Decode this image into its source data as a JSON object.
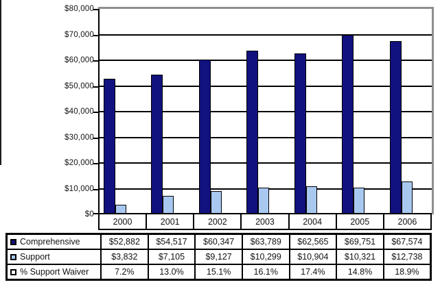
{
  "chart_data": {
    "type": "bar",
    "title": "",
    "xlabel": "",
    "ylabel": "",
    "categories": [
      "2000",
      "2001",
      "2002",
      "2003",
      "2004",
      "2005",
      "2006"
    ],
    "series": [
      {
        "name": "Comprehensive",
        "color": "#11117f",
        "plotted": true,
        "values": [
          52882,
          54517,
          60347,
          63789,
          62565,
          69751,
          67574
        ],
        "labels": [
          "$52,882",
          "$54,517",
          "$60,347",
          "$63,789",
          "$62,565",
          "$69,751",
          "$67,574"
        ]
      },
      {
        "name": "Support",
        "color": "#a8c8f0",
        "plotted": true,
        "values": [
          3832,
          7105,
          9127,
          10299,
          10904,
          10321,
          12738
        ],
        "labels": [
          "$3,832",
          "$7,105",
          "$9,127",
          "$10,299",
          "$10,904",
          "$10,321",
          "$12,738"
        ]
      },
      {
        "name": "% Support Waiver",
        "color": "#ffffff",
        "plotted": false,
        "values": [
          7.2,
          13.0,
          15.1,
          16.1,
          17.4,
          14.8,
          18.9
        ],
        "labels": [
          "7.2%",
          "13.0%",
          "15.1%",
          "16.1%",
          "17.4%",
          "14.8%",
          "18.9%"
        ]
      }
    ],
    "ylim": [
      0,
      80000
    ],
    "y_tick_interval": 10000,
    "y_ticks_top_to_bottom": [
      "$80,000",
      "$70,000",
      "$60,000",
      "$50,000",
      "$40,000",
      "$30,000",
      "$20,000",
      "$10,000",
      "$0"
    ],
    "grid": true,
    "gridline_color": "#000000",
    "plot_border_color": "#8e8e8e",
    "legend_position": "table-left"
  }
}
